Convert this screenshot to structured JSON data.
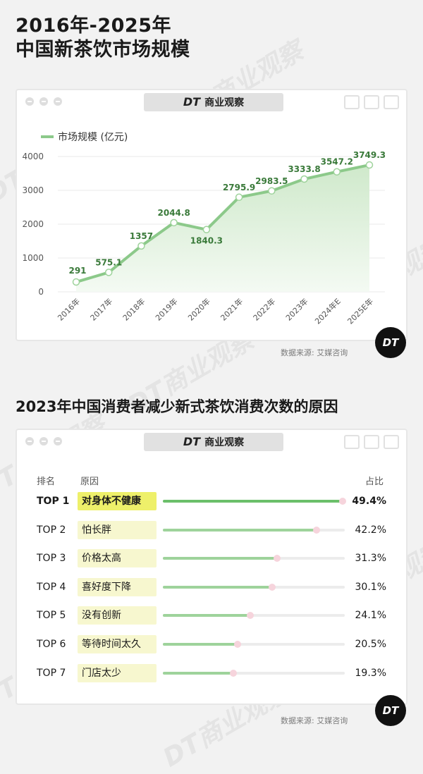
{
  "watermark": "DT商业观察",
  "brand": {
    "logo": "DT",
    "name": "商业观察"
  },
  "section1": {
    "title_line1": "2016年-2025年",
    "title_line2": "中国新茶饮市场规模",
    "source": "数据来源: 艾媒咨询"
  },
  "section2": {
    "title": "2023年中国消费者减少新式茶饮消费次数的原因",
    "col_rank": "排名",
    "col_reason": "原因",
    "col_share": "占比",
    "source": "数据来源: 艾媒咨询"
  },
  "badge": "DT",
  "colors": {
    "line": "#8cc98a",
    "area": "#e6f3e3",
    "value_text": "#3a7a3a",
    "highlight": "#eef06a"
  },
  "chart_data": [
    {
      "type": "area",
      "title": "2016年-2025年 中国新茶饮市场规模",
      "legend": "市场规模 (亿元)",
      "legend_position": "top-left",
      "categories": [
        "2016年",
        "2017年",
        "2018年",
        "2019年",
        "2020年",
        "2021年",
        "2022年",
        "2023年",
        "2024年E",
        "2025E年"
      ],
      "series": [
        {
          "name": "市场规模 (亿元)",
          "values": [
            291,
            575.1,
            1357,
            2044.8,
            1840.3,
            2795.9,
            2983.5,
            3333.8,
            3547.2,
            3749.3
          ]
        }
      ],
      "value_labels": [
        "291",
        "575.1",
        "1357",
        "2044.8",
        "1840.3",
        "2795.9",
        "2983.5",
        "3333.8",
        "3547.2",
        "3749.3"
      ],
      "ylim": [
        0,
        4000
      ],
      "yticks": [
        0,
        1000,
        2000,
        3000,
        4000
      ],
      "grid": true
    },
    {
      "type": "bar",
      "title": "2023年中国消费者减少新式茶饮消费次数的原因",
      "items": [
        {
          "rank": "TOP 1",
          "reason": "对身体不健康",
          "value": 49.4,
          "label": "49.4%"
        },
        {
          "rank": "TOP 2",
          "reason": "怕长胖",
          "value": 42.2,
          "label": "42.2%"
        },
        {
          "rank": "TOP 3",
          "reason": "价格太高",
          "value": 31.3,
          "label": "31.3%"
        },
        {
          "rank": "TOP 4",
          "reason": "喜好度下降",
          "value": 30.1,
          "label": "30.1%"
        },
        {
          "rank": "TOP 5",
          "reason": "没有创新",
          "value": 24.1,
          "label": "24.1%"
        },
        {
          "rank": "TOP 6",
          "reason": "等待时间太久",
          "value": 20.5,
          "label": "20.5%"
        },
        {
          "rank": "TOP 7",
          "reason": "门店太少",
          "value": 19.3,
          "label": "19.3%"
        }
      ],
      "xlim": [
        0,
        50
      ]
    }
  ]
}
